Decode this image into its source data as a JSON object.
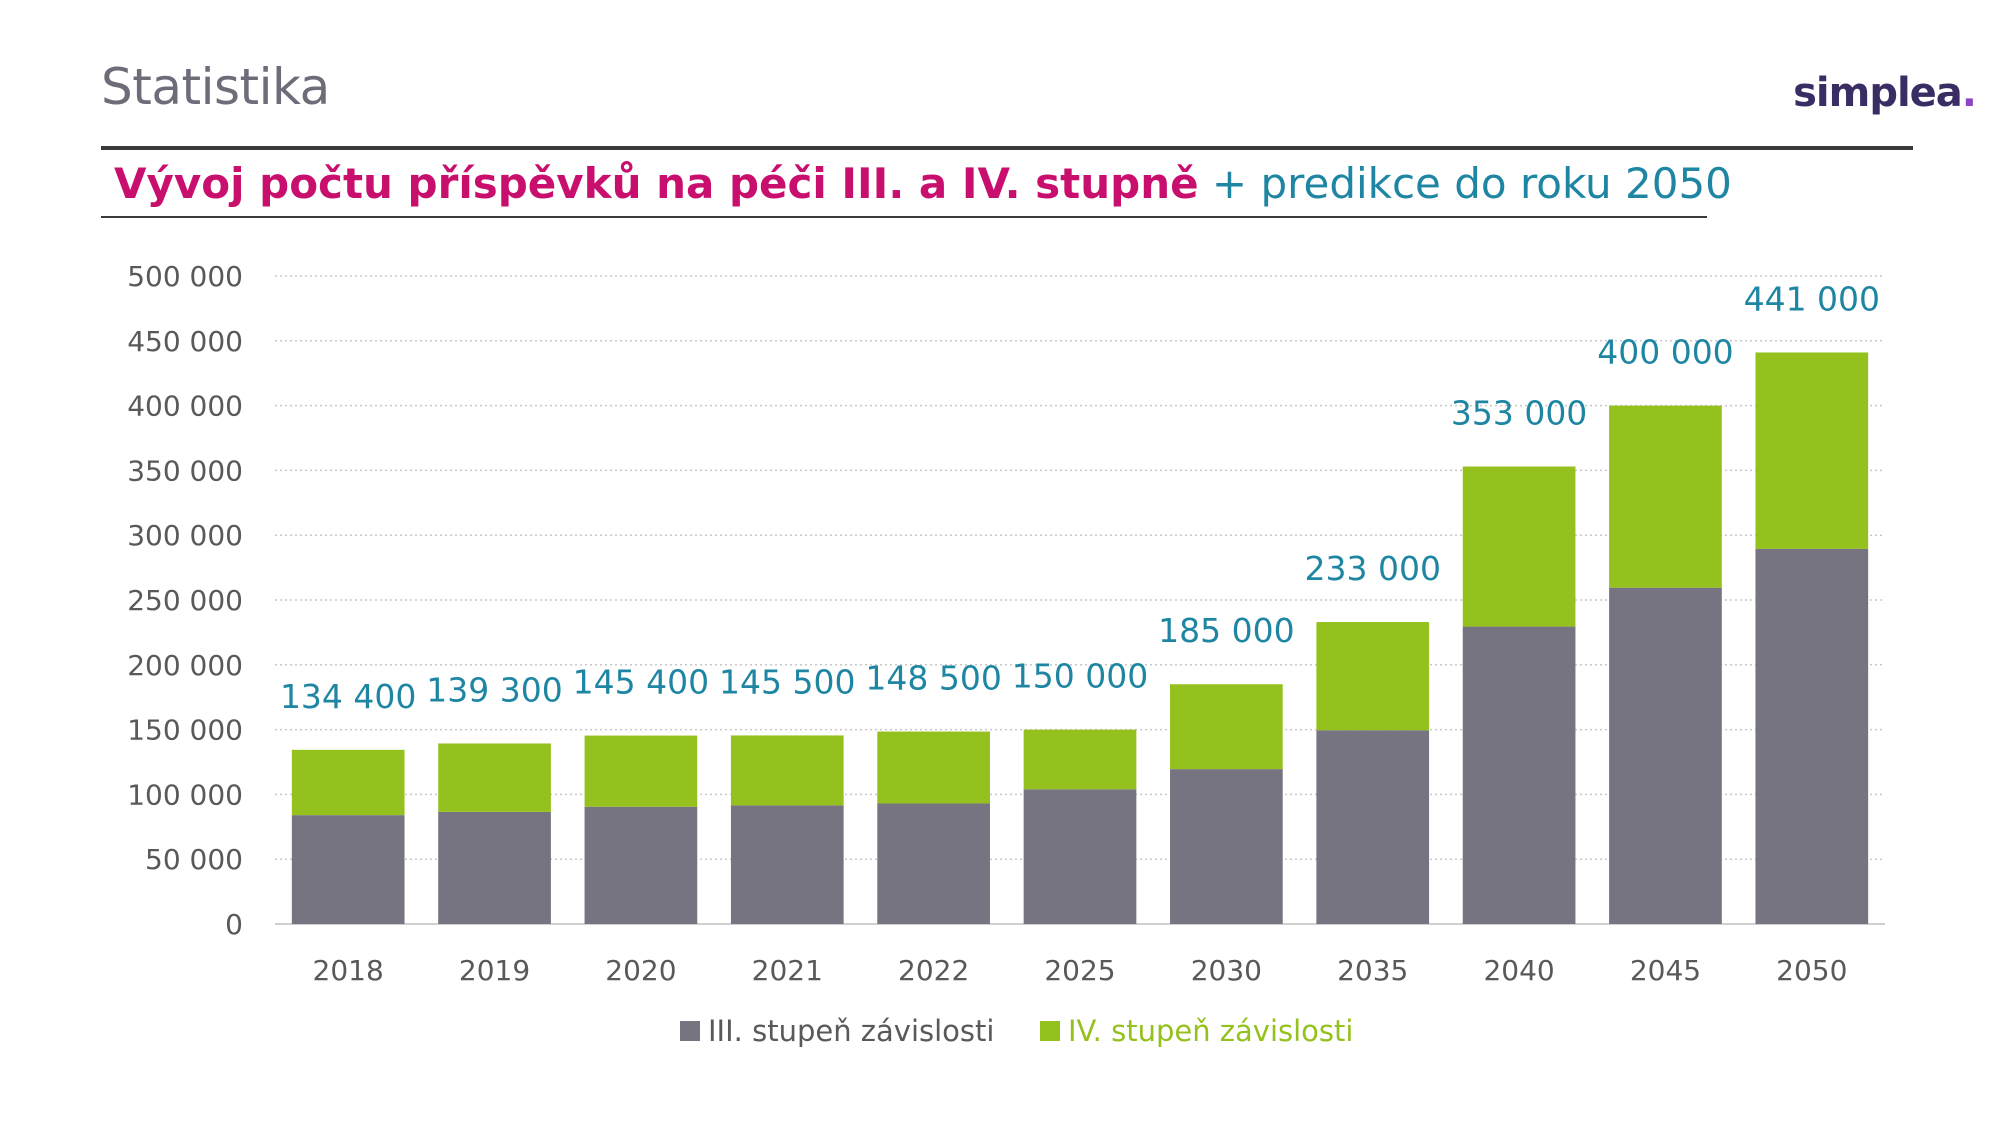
{
  "header": {
    "title": "Statistika",
    "logo_text": "simplea",
    "logo_dot": "."
  },
  "chart_title": {
    "main": "Vývoj počtu příspěvků na péči III. a IV. stupně",
    "sub": " + predikce do roku 2050"
  },
  "colors": {
    "series_iii": "#767481",
    "series_iv": "#95c11f",
    "total_label": "#1e86a3",
    "axis_text": "#595959",
    "title_pink": "#c90f6e",
    "title_blue": "#1e86a3"
  },
  "chart_data": {
    "type": "bar",
    "stacked": true,
    "categories": [
      "2018",
      "2019",
      "2020",
      "2021",
      "2022",
      "2025",
      "2030",
      "2035",
      "2040",
      "2045",
      "2050"
    ],
    "series": [
      {
        "name": "III. stupeň závislosti",
        "values": [
          84000,
          86500,
          90500,
          91500,
          93000,
          104000,
          119500,
          149500,
          229500,
          259500,
          289500
        ]
      },
      {
        "name": "IV. stupeň závislosti",
        "values": [
          50400,
          52800,
          54900,
          54000,
          55500,
          46000,
          65500,
          83500,
          123500,
          140500,
          151500
        ]
      }
    ],
    "totals": [
      134400,
      139300,
      145400,
      145500,
      148500,
      150000,
      185000,
      233000,
      353000,
      400000,
      441000
    ],
    "total_labels": [
      "134 400",
      "139 300",
      "145 400",
      "145 500",
      "148 500",
      "150 000",
      "185 000",
      "233 000",
      "353 000",
      "400 000",
      "441 000"
    ],
    "ylim": [
      0,
      500000
    ],
    "yticks": [
      0,
      50000,
      100000,
      150000,
      200000,
      250000,
      300000,
      350000,
      400000,
      450000,
      500000
    ],
    "ytick_labels": [
      "0",
      "50 000",
      "100 000",
      "150 000",
      "200 000",
      "250 000",
      "300 000",
      "350 000",
      "400 000",
      "450 000",
      "500 000"
    ],
    "grid": true,
    "legend_position": "bottom-center",
    "xlabel": "",
    "ylabel": ""
  }
}
